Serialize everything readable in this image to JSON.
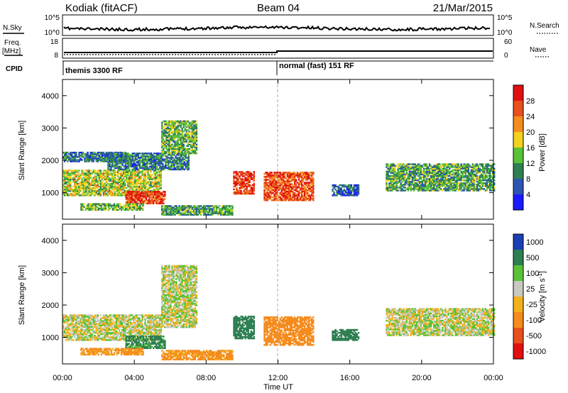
{
  "header": {
    "station": "Kodiak (fitACF)",
    "beam": "Beam 04",
    "date": "21/Mar/2015"
  },
  "aux": {
    "nsky_label": "N.Sky",
    "nsky_ticks": [
      "10^5",
      "10^0"
    ],
    "nsearch_label": "N.Search",
    "nsearch_ticks": [
      "10^5",
      "10^0"
    ],
    "freq_label": "Freq.",
    "freq_unit": "[MHz]",
    "freq_ticks": [
      "18",
      "8"
    ],
    "nave_label": "Nave",
    "nave_ticks": [
      "60",
      "0"
    ],
    "cpid_label": "CPID",
    "cpid_segments": [
      {
        "label": "themis 3300 RF",
        "start_hour": 0
      },
      {
        "label": "normal (fast) 151 RF",
        "start_hour": 12
      }
    ]
  },
  "colors": {
    "power_scale": [
      "#1a1aff",
      "#2b55b0",
      "#2e7f52",
      "#59c237",
      "#f2d21e",
      "#f58c1e",
      "#e8501e",
      "#e01010"
    ],
    "velocity_scale": [
      "#1b3fb5",
      "#2e7f52",
      "#59c237",
      "#c9c9c1",
      "#f2b21e",
      "#f58c1e",
      "#e8501e",
      "#e01010"
    ]
  },
  "chart_data": [
    {
      "type": "heatmap",
      "name": "power",
      "xlabel": "Time UT",
      "ylabel": "Slant Range [km]",
      "xlim": [
        0,
        24
      ],
      "ylim": [
        180,
        4500
      ],
      "x_ticks": [
        "00:00",
        "04:00",
        "08:00",
        "12:00",
        "16:00",
        "20:00",
        "00:00"
      ],
      "y_ticks": [
        1000,
        2000,
        3000,
        4000
      ],
      "colorbar_label": "Power [dB]",
      "colorbar_ticks": [
        "4",
        "8",
        "12",
        "16",
        "20",
        "24",
        "28"
      ],
      "colorbar_range": [
        0,
        32
      ],
      "echo_regions": [
        {
          "t0": 0.0,
          "t1": 5.5,
          "r0": 900,
          "r1": 1700,
          "level": 16
        },
        {
          "t0": 3.5,
          "t1": 5.7,
          "r0": 650,
          "r1": 1050,
          "level": 28
        },
        {
          "t0": 1.0,
          "t1": 4.5,
          "r0": 450,
          "r1": 650,
          "level": 14
        },
        {
          "t0": 0.0,
          "t1": 3.5,
          "r0": 1950,
          "r1": 2250,
          "level": 8
        },
        {
          "t0": 2.5,
          "t1": 7.0,
          "r0": 1700,
          "r1": 2200,
          "level": 9
        },
        {
          "t0": 5.5,
          "t1": 7.5,
          "r0": 2200,
          "r1": 3200,
          "level": 13
        },
        {
          "t0": 5.5,
          "t1": 9.5,
          "r0": 300,
          "r1": 600,
          "level": 12
        },
        {
          "t0": 9.5,
          "t1": 10.7,
          "r0": 950,
          "r1": 1650,
          "level": 28
        },
        {
          "t0": 11.2,
          "t1": 14.0,
          "r0": 750,
          "r1": 1650,
          "level": 26
        },
        {
          "t0": 15.0,
          "t1": 16.5,
          "r0": 900,
          "r1": 1250,
          "level": 7
        },
        {
          "t0": 18.0,
          "t1": 24.0,
          "r0": 1050,
          "r1": 1900,
          "level": 12
        }
      ]
    },
    {
      "type": "heatmap",
      "name": "velocity",
      "xlabel": "Time UT",
      "ylabel": "Slant Range [km]",
      "xlim": [
        0,
        24
      ],
      "ylim": [
        180,
        4500
      ],
      "x_ticks": [
        "00:00",
        "04:00",
        "08:00",
        "12:00",
        "16:00",
        "20:00",
        "00:00"
      ],
      "y_ticks": [
        1000,
        2000,
        3000,
        4000
      ],
      "colorbar_label": "Velocity [m s",
      "colorbar_label_sup": "-1",
      "colorbar_label_tail": "]",
      "colorbar_ticks": [
        "1000",
        "500",
        "100",
        "25",
        "-25",
        "-100",
        "-500",
        "-1000"
      ],
      "echo_regions": [
        {
          "t0": 0.0,
          "t1": 5.5,
          "r0": 900,
          "r1": 1700,
          "level": 0
        },
        {
          "t0": 3.5,
          "t1": 5.7,
          "r0": 650,
          "r1": 1050,
          "level": 150
        },
        {
          "t0": 1.0,
          "t1": 4.5,
          "r0": 450,
          "r1": 650,
          "level": -150
        },
        {
          "t0": 5.5,
          "t1": 7.5,
          "r0": 1300,
          "r1": 3200,
          "level": 0
        },
        {
          "t0": 5.5,
          "t1": 9.5,
          "r0": 300,
          "r1": 600,
          "level": -150
        },
        {
          "t0": 9.5,
          "t1": 10.7,
          "r0": 950,
          "r1": 1650,
          "level": 200
        },
        {
          "t0": 11.2,
          "t1": 14.0,
          "r0": 750,
          "r1": 1650,
          "level": -200
        },
        {
          "t0": 15.0,
          "t1": 16.5,
          "r0": 900,
          "r1": 1250,
          "level": 200
        },
        {
          "t0": 18.0,
          "t1": 24.0,
          "r0": 1050,
          "r1": 1900,
          "level": 0
        }
      ]
    }
  ]
}
